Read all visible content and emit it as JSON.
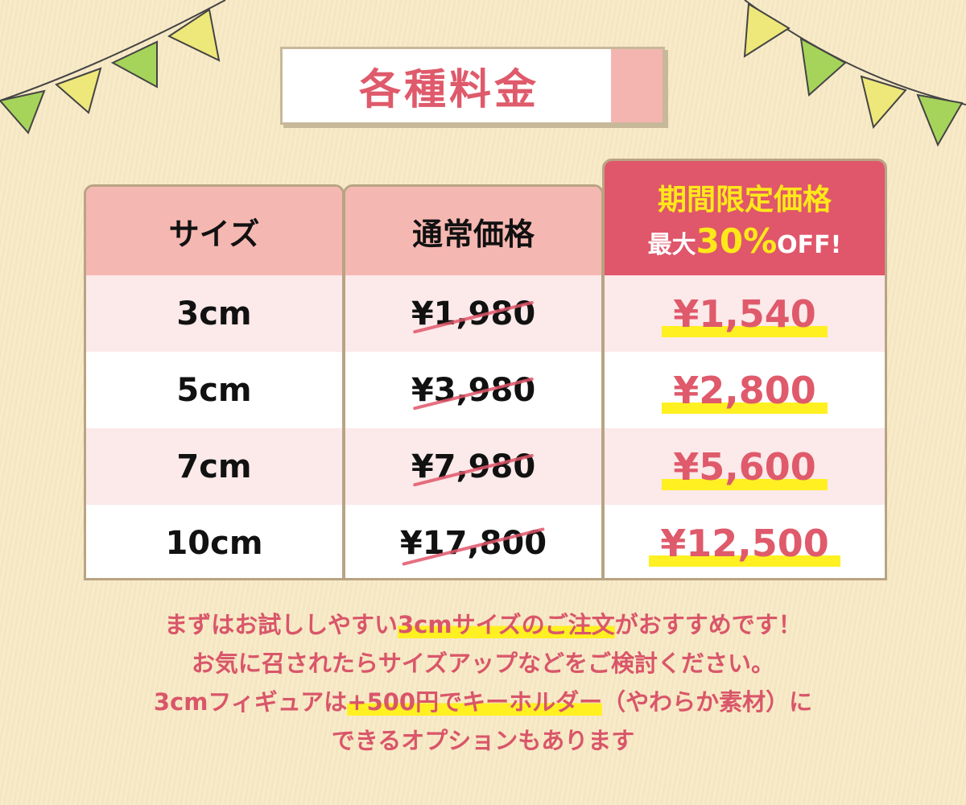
{
  "title": "各種料金",
  "table": {
    "headers": {
      "size": "サイズ",
      "regular": "通常価格",
      "sale_line1": "期間限定価格",
      "sale_prefix": "最大",
      "sale_percent": "30%",
      "sale_suffix": "OFF!"
    },
    "rows": [
      {
        "size": "3cm",
        "regular": "¥1,980",
        "sale": "¥1,540"
      },
      {
        "size": "5cm",
        "regular": "¥3,980",
        "sale": "¥2,800"
      },
      {
        "size": "7cm",
        "regular": "¥7,980",
        "sale": "¥5,600"
      },
      {
        "size": "10cm",
        "regular": "¥17,800",
        "sale": "¥12,500"
      }
    ]
  },
  "note": {
    "l1a": "まずはお試ししやすい",
    "l1b": "3cmサイズのご注文",
    "l1c": "がおすすめです！",
    "l2": "お気に召されたらサイズアップなどをご検討ください。",
    "l3a": "3cmフィギュアは",
    "l3b": "+500円でキーホルダー",
    "l3c": "（やわらか素材）に",
    "l4": "できるオプションもあります"
  },
  "colors": {
    "accent": "#df5a6b",
    "header_pink": "#f5b7b1",
    "highlight": "#fff022",
    "sale_yellow": "#ffe81a",
    "border": "#b8a483"
  }
}
